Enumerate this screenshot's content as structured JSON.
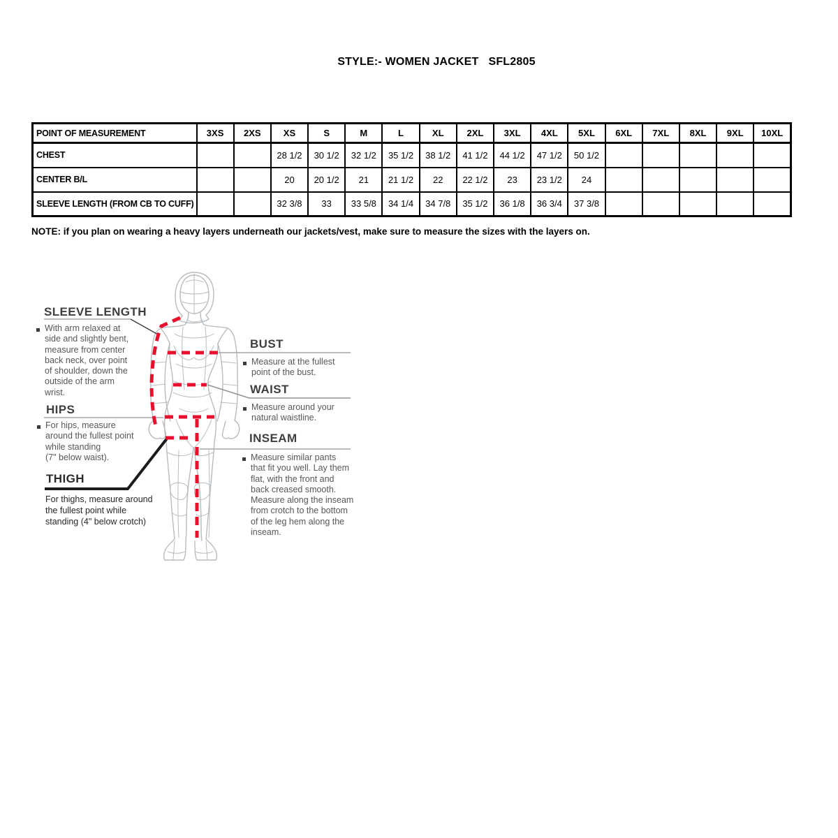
{
  "title": "STYLE:- WOMEN JACKET   SFL2805",
  "table": {
    "header": [
      "POINT OF MEASUREMENT",
      "3XS",
      "2XS",
      "XS",
      "S",
      "M",
      "L",
      "XL",
      "2XL",
      "3XL",
      "4XL",
      "5XL",
      "6XL",
      "7XL",
      "8XL",
      "9XL",
      "10XL"
    ],
    "rows": [
      {
        "label": "CHEST",
        "values": [
          "",
          "",
          "28 1/2",
          "30 1/2",
          "32 1/2",
          "35 1/2",
          "38 1/2",
          "41 1/2",
          "44 1/2",
          "47 1/2",
          "50 1/2",
          "",
          "",
          "",
          "",
          ""
        ]
      },
      {
        "label": "CENTER B/L",
        "values": [
          "",
          "",
          "20",
          "20 1/2",
          "21",
          "21 1/2",
          "22",
          "22 1/2",
          "23",
          "23 1/2",
          "24",
          "",
          "",
          "",
          "",
          ""
        ]
      },
      {
        "label": "SLEEVE LENGTH (FROM CB TO CUFF)",
        "values": [
          "",
          "",
          "32 3/8",
          "33",
          "33 5/8",
          "34 1/4",
          "34 7/8",
          "35 1/2",
          "36 1/8",
          "36 3/4",
          "37 3/8",
          "",
          "",
          "",
          "",
          ""
        ]
      }
    ]
  },
  "note": "NOTE: if you plan on wearing a heavy layers underneath our jackets/vest, make sure to measure the sizes with the layers on.",
  "diagram": {
    "sleeve_length": {
      "heading": "SLEEVE LENGTH",
      "text": "With arm relaxed at\nside and slightly bent,\nmeasure from center\nback neck, over point\nof shoulder, down the\noutside of the arm\nwrist."
    },
    "hips": {
      "heading": "HIPS",
      "text": "For hips, measure\naround the fullest point\nwhile standing\n(7\" below waist)."
    },
    "thigh": {
      "heading": "THIGH",
      "text": "For thighs, measure around\nthe fullest point while\nstanding (4\" below crotch)"
    },
    "bust": {
      "heading": "BUST",
      "text": "Measure at the fullest\npoint of the bust."
    },
    "waist": {
      "heading": "WAIST",
      "text": "Measure around your\nnatural waistline."
    },
    "inseam": {
      "heading": "INSEAM",
      "text": "Measure similar pants\nthat fit you well. Lay them\nflat, with the front and\nback creased smooth.\nMeasure along the inseam\nfrom crotch to the bottom\nof the leg hem along the\ninseam."
    },
    "colors": {
      "measure_line": "#e8112d",
      "figure_outline": "#b7bcc0",
      "leader_gray": "#a3a7aa",
      "leader_dark": "#2b2b2b"
    }
  }
}
